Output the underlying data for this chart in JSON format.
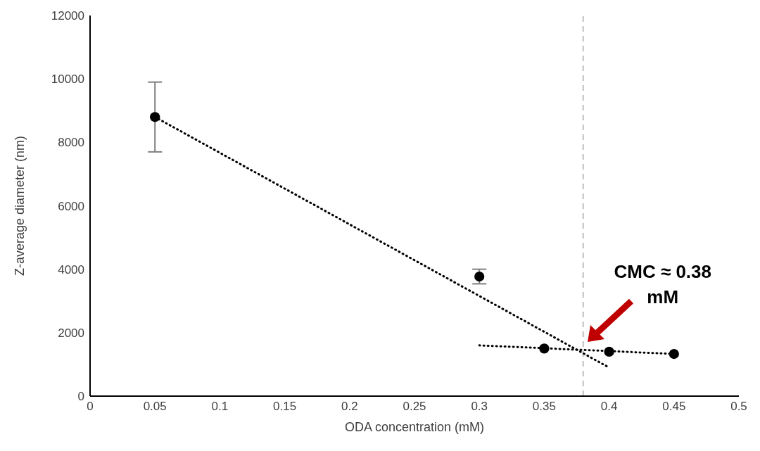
{
  "chart_data": {
    "type": "scatter",
    "xlabel": "ODA concentration (mM)",
    "ylabel": "Z-average diameter (nm)",
    "xlim": [
      0,
      0.5
    ],
    "xticks": [
      0,
      0.05,
      0.1,
      0.15,
      0.2,
      0.25,
      0.3,
      0.35,
      0.4,
      0.45,
      0.5
    ],
    "ylim": [
      0,
      12000
    ],
    "yticks": [
      0,
      2000,
      4000,
      6000,
      8000,
      10000,
      12000
    ],
    "grid": false,
    "series": [
      {
        "color": "#000000",
        "marker": "circle",
        "x": [
          0.05,
          0.3,
          0.35,
          0.4,
          0.45
        ],
        "values": [
          8800,
          3770,
          1500,
          1400,
          1330
        ],
        "errors": [
          [
            7700,
            9900
          ],
          [
            3540,
            4000
          ],
          null,
          null,
          null
        ]
      },
      {
        "type": "line",
        "color": "#000000",
        "line_style": "dotted",
        "marker": "none",
        "x": [
          0.05,
          0.4
        ],
        "values": [
          8800,
          900
        ]
      },
      {
        "type": "line",
        "color": "#000000",
        "line_style": "dotted",
        "marker": "none",
        "x": [
          0.3,
          0.45
        ],
        "values": [
          1600,
          1330
        ]
      }
    ],
    "ref_lines": [
      {
        "axis": "x",
        "value": 0.38,
        "color": "#bfbfbf",
        "line_style": "dashed"
      }
    ],
    "annotations": [
      {
        "text": "CMC ≈ 0.38 mM",
        "x": 0.38,
        "y": 1450
      }
    ]
  }
}
